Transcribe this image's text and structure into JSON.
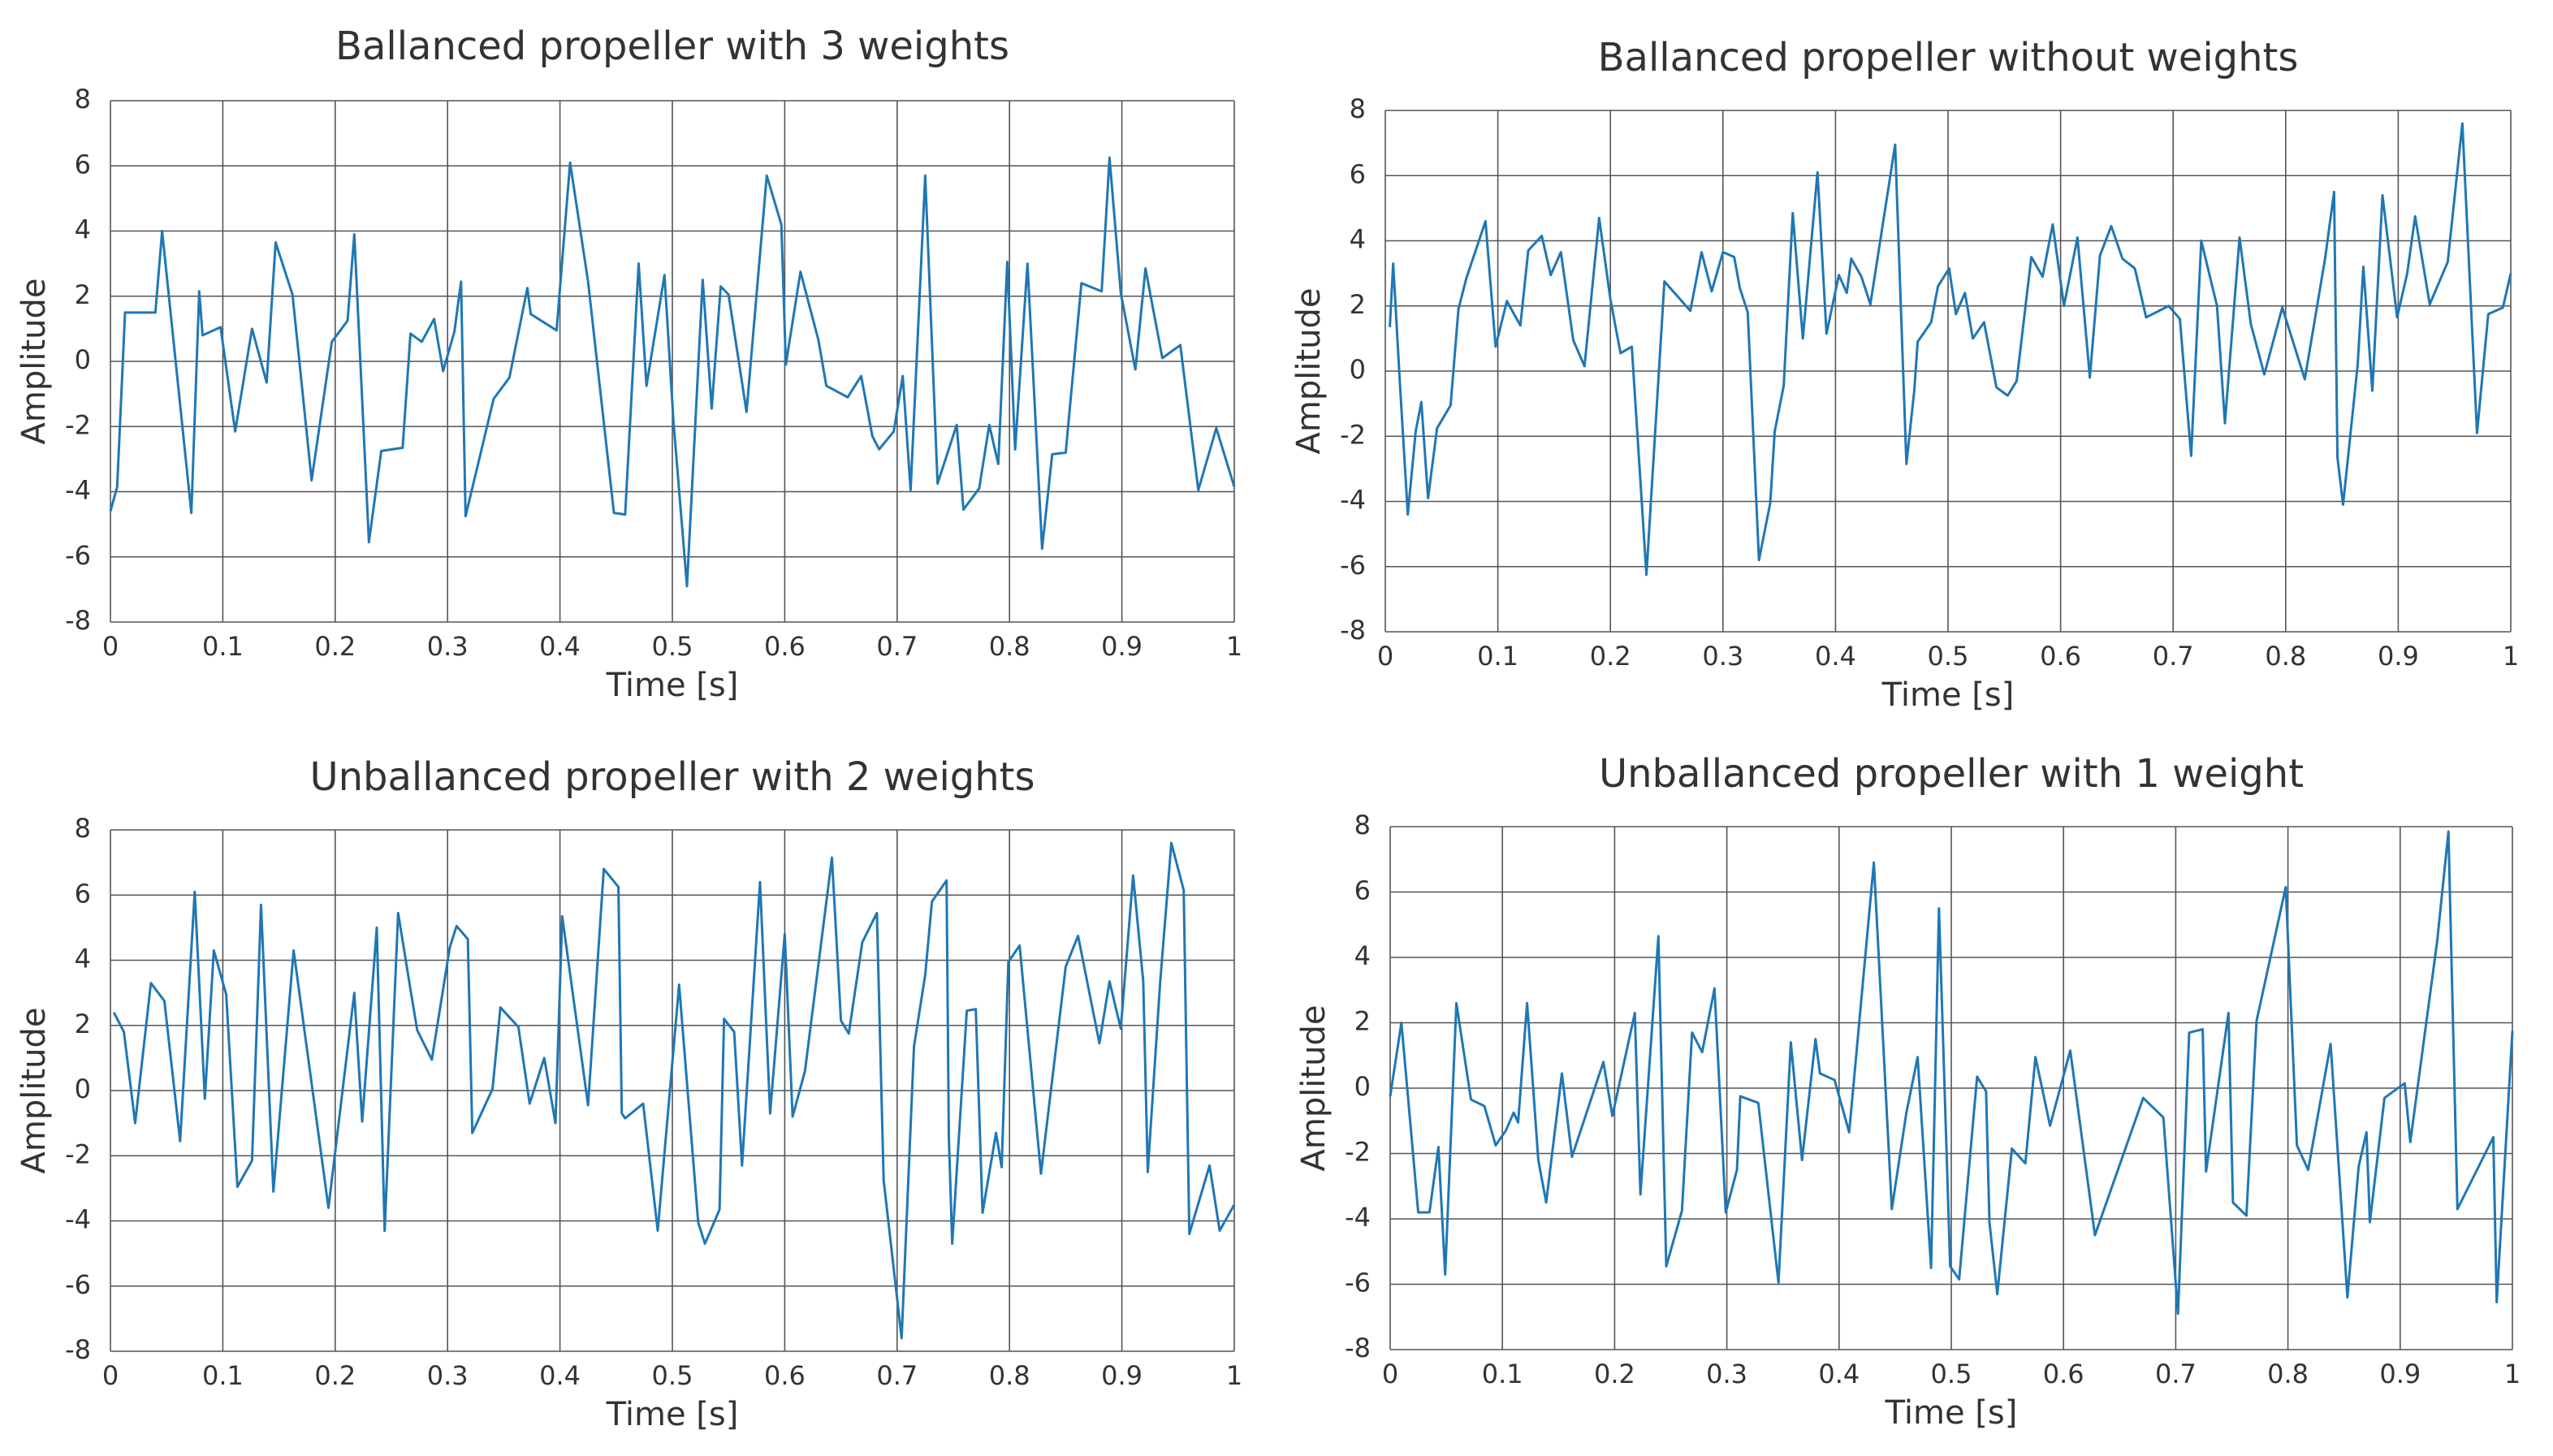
{
  "chart_data": [
    {
      "type": "line",
      "title": "Ballanced propeller with 3 weights",
      "xlabel": "Time [s]",
      "ylabel": "Amplitude",
      "color": "#1f77b4",
      "grid": true,
      "xlim": [
        0,
        1
      ],
      "xticks": [
        0,
        0.1,
        0.2,
        0.3,
        0.4,
        0.5,
        0.6,
        0.7,
        0.8,
        0.9,
        1
      ],
      "ylim": [
        -8,
        8
      ],
      "yticks": [
        -8,
        -6,
        -4,
        -2,
        0,
        2,
        4,
        6,
        8
      ],
      "x": [
        0,
        0.006,
        0.013,
        0.04,
        0.046,
        0.072,
        0.079,
        0.082,
        0.098,
        0.111,
        0.126,
        0.139,
        0.147,
        0.162,
        0.179,
        0.197,
        0.211,
        0.217,
        0.23,
        0.241,
        0.26,
        0.267,
        0.277,
        0.288,
        0.296,
        0.306,
        0.312,
        0.316,
        0.341,
        0.355,
        0.371,
        0.374,
        0.397,
        0.409,
        0.425,
        0.448,
        0.458,
        0.47,
        0.477,
        0.493,
        0.501,
        0.513,
        0.527,
        0.535,
        0.543,
        0.55,
        0.566,
        0.584,
        0.597,
        0.601,
        0.614,
        0.63,
        0.637,
        0.656,
        0.668,
        0.678,
        0.684,
        0.697,
        0.705,
        0.712,
        0.725,
        0.736,
        0.753,
        0.759,
        0.773,
        0.782,
        0.79,
        0.798,
        0.805,
        0.816,
        0.829,
        0.838,
        0.85,
        0.864,
        0.882,
        0.889,
        0.899,
        0.912,
        0.921,
        0.936,
        0.952,
        0.968,
        0.984,
        1.0
      ],
      "values": [
        -4.6,
        -3.85,
        1.5,
        1.5,
        4.0,
        -4.65,
        2.15,
        0.8,
        1.05,
        -2.15,
        1.0,
        -0.65,
        3.65,
        2.05,
        -3.65,
        0.6,
        1.25,
        3.9,
        -5.55,
        -2.75,
        -2.65,
        0.85,
        0.6,
        1.3,
        -0.3,
        0.9,
        2.45,
        -4.75,
        -1.15,
        -0.5,
        2.25,
        1.45,
        0.95,
        6.1,
        2.45,
        -4.65,
        -4.7,
        3.0,
        -0.75,
        2.65,
        -1.85,
        -6.9,
        2.5,
        -1.45,
        2.3,
        2.05,
        -1.55,
        5.7,
        4.2,
        -0.1,
        2.75,
        0.65,
        -0.75,
        -1.1,
        -0.45,
        -2.3,
        -2.7,
        -2.15,
        -0.45,
        -3.95,
        5.7,
        -3.75,
        -1.95,
        -4.55,
        -3.9,
        -1.95,
        -3.15,
        3.05,
        -2.7,
        3.0,
        -5.75,
        -2.85,
        -2.8,
        2.4,
        2.15,
        6.25,
        2.1,
        -0.25,
        2.85,
        0.1,
        0.5,
        -3.95,
        -2.05,
        -3.85
      ]
    },
    {
      "type": "line",
      "title": "Ballanced propeller without weights",
      "xlabel": "Time [s]",
      "ylabel": "Amplitude",
      "color": "#1f77b4",
      "grid": true,
      "xlim": [
        0,
        1
      ],
      "xticks": [
        0,
        0.1,
        0.2,
        0.3,
        0.4,
        0.5,
        0.6,
        0.7,
        0.8,
        0.9,
        1
      ],
      "ylim": [
        -8,
        8
      ],
      "yticks": [
        -8,
        -6,
        -4,
        -2,
        0,
        2,
        4,
        6,
        8
      ],
      "x": [
        0.004,
        0.007,
        0.013,
        0.02,
        0.027,
        0.032,
        0.038,
        0.046,
        0.058,
        0.065,
        0.072,
        0.089,
        0.098,
        0.108,
        0.12,
        0.127,
        0.139,
        0.147,
        0.156,
        0.167,
        0.177,
        0.19,
        0.2,
        0.209,
        0.219,
        0.232,
        0.248,
        0.271,
        0.281,
        0.29,
        0.3,
        0.31,
        0.315,
        0.322,
        0.332,
        0.342,
        0.346,
        0.354,
        0.362,
        0.371,
        0.384,
        0.392,
        0.403,
        0.41,
        0.414,
        0.423,
        0.431,
        0.453,
        0.463,
        0.47,
        0.473,
        0.485,
        0.491,
        0.501,
        0.507,
        0.515,
        0.522,
        0.532,
        0.543,
        0.553,
        0.561,
        0.574,
        0.584,
        0.593,
        0.603,
        0.615,
        0.626,
        0.635,
        0.645,
        0.655,
        0.666,
        0.676,
        0.696,
        0.706,
        0.716,
        0.725,
        0.739,
        0.746,
        0.759,
        0.769,
        0.781,
        0.797,
        0.817,
        0.835,
        0.843,
        0.846,
        0.851,
        0.864,
        0.869,
        0.877,
        0.886,
        0.899,
        0.908,
        0.915,
        0.928,
        0.944,
        0.957,
        0.97,
        0.98,
        0.993,
        1.0
      ],
      "values": [
        1.35,
        3.3,
        -0.4,
        -4.4,
        -1.85,
        -0.95,
        -3.9,
        -1.75,
        -1.05,
        1.9,
        2.85,
        4.6,
        0.75,
        2.15,
        1.4,
        3.7,
        4.15,
        2.95,
        3.65,
        0.95,
        0.15,
        4.7,
        2.2,
        0.55,
        0.75,
        -6.25,
        2.75,
        1.85,
        3.65,
        2.45,
        3.65,
        3.5,
        2.55,
        1.8,
        -5.8,
        -4.05,
        -1.85,
        -0.45,
        4.85,
        1.0,
        6.1,
        1.15,
        2.95,
        2.4,
        3.45,
        2.9,
        2.05,
        6.95,
        -2.85,
        -0.6,
        0.9,
        1.5,
        2.6,
        3.15,
        1.75,
        2.4,
        1.0,
        1.5,
        -0.5,
        -0.75,
        -0.3,
        3.5,
        2.9,
        4.5,
        2.0,
        4.1,
        -0.2,
        3.55,
        4.45,
        3.45,
        3.15,
        1.65,
        2.0,
        1.6,
        -2.6,
        4.0,
        2.0,
        -1.6,
        4.1,
        1.45,
        -0.1,
        1.95,
        -0.25,
        3.45,
        5.5,
        -2.65,
        -4.1,
        0.2,
        3.2,
        -0.6,
        5.4,
        1.65,
        3.0,
        4.75,
        2.05,
        3.35,
        7.6,
        -1.9,
        1.75,
        1.95,
        3.0
      ]
    },
    {
      "type": "line",
      "title": "Unballanced propeller with 2 weights",
      "xlabel": "Time [s]",
      "ylabel": "Amplitude",
      "color": "#1f77b4",
      "grid": true,
      "xlim": [
        0,
        1
      ],
      "xticks": [
        0,
        0.1,
        0.2,
        0.3,
        0.4,
        0.5,
        0.6,
        0.7,
        0.8,
        0.9,
        1
      ],
      "ylim": [
        -8,
        8
      ],
      "yticks": [
        -8,
        -6,
        -4,
        -2,
        0,
        2,
        4,
        6,
        8
      ],
      "x": [
        0.003,
        0.012,
        0.022,
        0.036,
        0.048,
        0.062,
        0.075,
        0.084,
        0.092,
        0.103,
        0.113,
        0.126,
        0.134,
        0.145,
        0.163,
        0.194,
        0.217,
        0.224,
        0.237,
        0.244,
        0.256,
        0.267,
        0.273,
        0.286,
        0.302,
        0.308,
        0.318,
        0.322,
        0.34,
        0.347,
        0.363,
        0.373,
        0.386,
        0.396,
        0.402,
        0.425,
        0.439,
        0.452,
        0.455,
        0.458,
        0.474,
        0.487,
        0.506,
        0.523,
        0.529,
        0.542,
        0.546,
        0.555,
        0.562,
        0.578,
        0.587,
        0.6,
        0.607,
        0.618,
        0.642,
        0.65,
        0.657,
        0.669,
        0.682,
        0.688,
        0.704,
        0.715,
        0.725,
        0.731,
        0.744,
        0.746,
        0.749,
        0.762,
        0.77,
        0.776,
        0.788,
        0.793,
        0.799,
        0.809,
        0.828,
        0.85,
        0.861,
        0.88,
        0.889,
        0.899,
        0.91,
        0.919,
        0.923,
        0.934,
        0.944,
        0.955,
        0.96,
        0.978,
        0.987,
        1.0
      ],
      "values": [
        2.4,
        1.8,
        -1.0,
        3.3,
        2.75,
        -1.55,
        6.1,
        -0.25,
        4.3,
        2.95,
        -2.95,
        -2.15,
        5.7,
        -3.1,
        4.3,
        -3.6,
        3.0,
        -0.95,
        5.0,
        -4.3,
        5.45,
        3.1,
        1.85,
        0.95,
        4.4,
        5.05,
        4.65,
        -1.3,
        0.05,
        2.55,
        1.95,
        -0.4,
        1.0,
        -1.0,
        5.35,
        -0.45,
        6.8,
        6.25,
        -0.7,
        -0.85,
        -0.4,
        -4.3,
        3.25,
        -4.05,
        -4.7,
        -3.65,
        2.2,
        1.8,
        -2.3,
        6.4,
        -0.7,
        4.8,
        -0.8,
        0.6,
        7.15,
        2.15,
        1.75,
        4.55,
        5.45,
        -2.75,
        -7.6,
        1.35,
        3.55,
        5.8,
        6.45,
        -1.4,
        -4.7,
        2.45,
        2.5,
        -3.75,
        -1.3,
        -2.35,
        3.95,
        4.45,
        -2.55,
        3.8,
        4.75,
        1.45,
        3.35,
        1.9,
        6.6,
        3.35,
        -2.5,
        3.3,
        7.6,
        6.15,
        -4.4,
        -2.3,
        -4.3,
        -3.5
      ]
    },
    {
      "type": "line",
      "title": "Unballanced propeller with 1 weight",
      "xlabel": "Time [s]",
      "ylabel": "Amplitude",
      "color": "#1f77b4",
      "grid": true,
      "xlim": [
        0,
        1
      ],
      "xticks": [
        0,
        0.1,
        0.2,
        0.3,
        0.4,
        0.5,
        0.6,
        0.7,
        0.8,
        0.9,
        1
      ],
      "ylim": [
        -8,
        8
      ],
      "yticks": [
        -8,
        -6,
        -4,
        -2,
        0,
        2,
        4,
        6,
        8
      ],
      "x": [
        0,
        0.01,
        0.025,
        0.035,
        0.043,
        0.049,
        0.059,
        0.072,
        0.084,
        0.094,
        0.103,
        0.11,
        0.114,
        0.122,
        0.132,
        0.139,
        0.153,
        0.162,
        0.19,
        0.198,
        0.218,
        0.223,
        0.239,
        0.246,
        0.26,
        0.269,
        0.278,
        0.289,
        0.299,
        0.309,
        0.312,
        0.328,
        0.346,
        0.357,
        0.367,
        0.379,
        0.383,
        0.396,
        0.409,
        0.431,
        0.447,
        0.46,
        0.47,
        0.482,
        0.489,
        0.499,
        0.507,
        0.523,
        0.531,
        0.534,
        0.541,
        0.554,
        0.566,
        0.575,
        0.588,
        0.606,
        0.628,
        0.671,
        0.689,
        0.702,
        0.712,
        0.724,
        0.727,
        0.747,
        0.751,
        0.763,
        0.772,
        0.798,
        0.808,
        0.818,
        0.838,
        0.853,
        0.863,
        0.87,
        0.873,
        0.886,
        0.904,
        0.909,
        0.933,
        0.943,
        0.951,
        0.983,
        0.986,
        1.0
      ],
      "values": [
        -0.25,
        2.0,
        -3.8,
        -3.8,
        -1.8,
        -5.7,
        2.6,
        -0.35,
        -0.55,
        -1.75,
        -1.3,
        -0.75,
        -1.05,
        2.6,
        -2.2,
        -3.5,
        0.45,
        -2.1,
        0.8,
        -0.85,
        2.3,
        -3.25,
        4.65,
        -5.45,
        -3.75,
        1.7,
        1.1,
        3.05,
        -3.8,
        -2.5,
        -0.25,
        -0.45,
        -5.95,
        1.4,
        -2.2,
        1.5,
        0.45,
        0.25,
        -1.35,
        6.9,
        -3.7,
        -0.75,
        0.95,
        -5.5,
        5.5,
        -5.45,
        -5.85,
        0.35,
        -0.1,
        -4.1,
        -6.3,
        -1.85,
        -2.3,
        0.95,
        -1.15,
        1.15,
        -4.5,
        -0.3,
        -0.9,
        -6.9,
        1.7,
        1.8,
        -2.55,
        2.3,
        -3.5,
        -3.9,
        2.05,
        6.15,
        -1.75,
        -2.5,
        1.35,
        -6.4,
        -2.4,
        -1.35,
        -4.1,
        -0.3,
        0.15,
        -1.65,
        4.5,
        7.85,
        -3.7,
        -1.5,
        -6.55,
        1.75
      ]
    }
  ]
}
